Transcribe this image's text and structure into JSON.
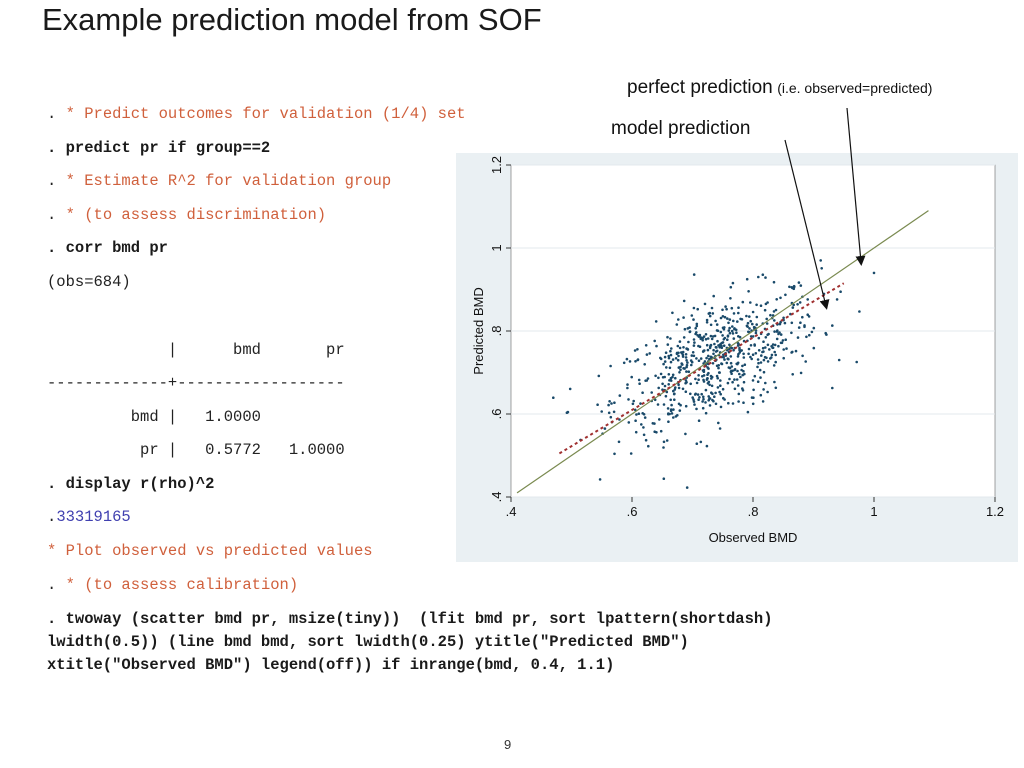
{
  "title": "Example prediction model from SOF",
  "code_lines": {
    "l1_prompt": ". ",
    "l1_comment": "* Predict outcomes for validation (1/4) set",
    "l2": ". predict pr if group==2",
    "l3_prompt": ". ",
    "l3_comment": "* Estimate R^2 for validation group",
    "l4_prompt": ". ",
    "l4_comment": "* (to assess discrimination)",
    "l5": ". corr bmd pr",
    "l6": "(obs=684)",
    "l7": "             |      bmd       pr",
    "l8": "-------------+------------------",
    "l9": "         bmd |   1.0000",
    "l10": "          pr |   0.5772   1.0000",
    "l11": ". display r(rho)^2",
    "l12_prompt": ".",
    "l12_result": "33319165",
    "l13_comment": "* Plot observed vs predicted values",
    "l14_prompt": ". ",
    "l14_comment": "* (to assess calibration)",
    "l15": ". twoway (scatter bmd pr, msize(tiny))  (lfit bmd pr, sort lpattern(shortdash)",
    "l16": "lwidth(0.5)) (line bmd bmd, sort lwidth(0.25) ytitle(\"Predicted BMD\")",
    "l17": "xtitle(\"Observed BMD\") legend(off)) if inrange(bmd, 0.4, 1.1)"
  },
  "annotations": {
    "perfect_main": "perfect prediction",
    "perfect_sub": "(i.e. observed=predicted)",
    "model": "model prediction"
  },
  "page_number": "9",
  "colors": {
    "comment": "#d0603c",
    "result": "#4040b0",
    "points": "#1a4a6a",
    "identity_line": "#7a8a50",
    "fit_line": "#a03030",
    "panel_bg": "#eaf0f3"
  },
  "chart_data": {
    "type": "scatter",
    "xlabel": "Observed BMD",
    "ylabel": "Predicted BMD",
    "xlim": [
      0.4,
      1.2
    ],
    "ylim": [
      0.4,
      1.2
    ],
    "x_ticks": [
      0.4,
      0.6,
      0.8,
      1.0,
      1.2
    ],
    "x_tick_labels": [
      ".4",
      ".6",
      ".8",
      "1",
      "1.2"
    ],
    "y_ticks": [
      0.4,
      0.6,
      0.8,
      1.0,
      1.2
    ],
    "y_tick_labels": [
      ".4",
      ".6",
      ".8",
      "1",
      "1.2"
    ],
    "n_points": 684,
    "point_cloud": {
      "x_mean": 0.74,
      "y_mean": 0.73,
      "x_sd": 0.085,
      "y_sd": 0.085,
      "correlation": 0.5772
    },
    "fit_line": {
      "x": [
        0.48,
        0.95
      ],
      "y": [
        0.505,
        0.915
      ]
    },
    "identity_line": {
      "x": [
        0.41,
        1.09
      ],
      "y": [
        0.41,
        1.09
      ]
    },
    "grid": true,
    "legend": "off"
  }
}
